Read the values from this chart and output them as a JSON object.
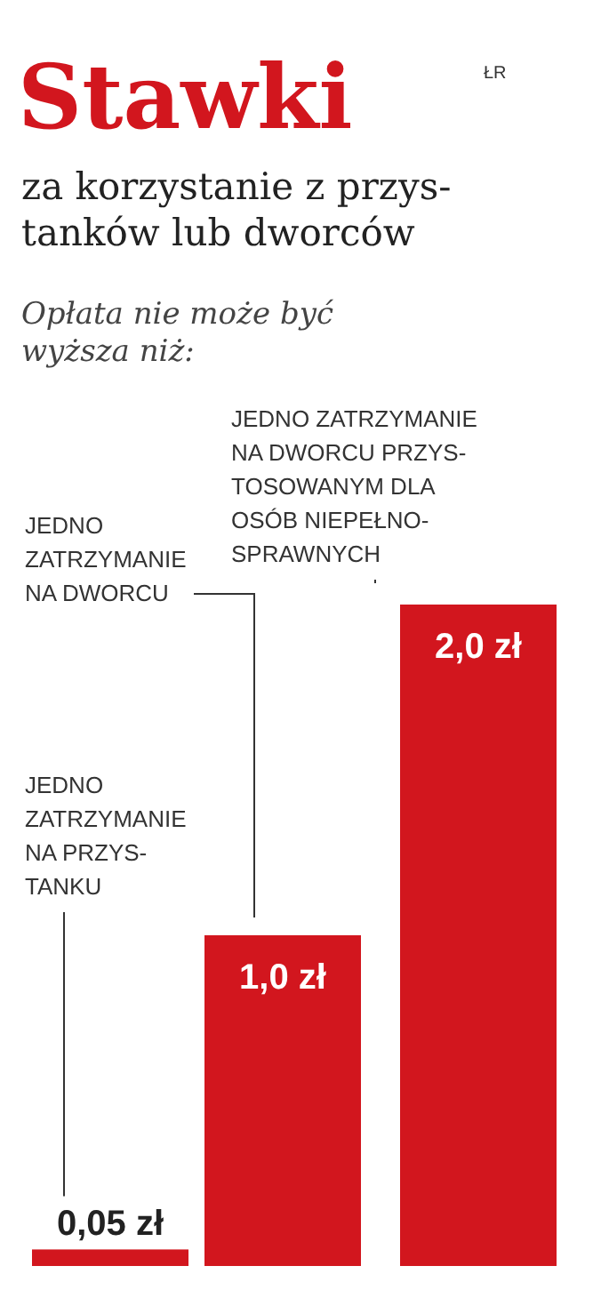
{
  "chart_data": {
    "type": "bar",
    "title": "Stawki",
    "subtitle": "za korzystanie z przys-\ntanków lub dworców",
    "annotations": [
      "Opłata nie może być\nwyższa niż:",
      "ŁR",
      "JEDNO\nZATRZYMANIE\nNA PRZYS-\nTANKU",
      "JEDNO\nZATRZYMANIE\nNA DWORCU",
      "JEDNO ZATRZYMANIE\nNA DWORCU PRZYS-\nTOSOWANYM DLA\nOSÓB NIEPEŁNO-\nSPRAWNYCH"
    ],
    "categories": [
      null,
      null,
      null
    ],
    "values": [
      0.05,
      1.0,
      2.0
    ],
    "value_labels": [
      "0,05 zł",
      "1,0 zł",
      "2,0 zł"
    ],
    "color": "#d2161e"
  }
}
